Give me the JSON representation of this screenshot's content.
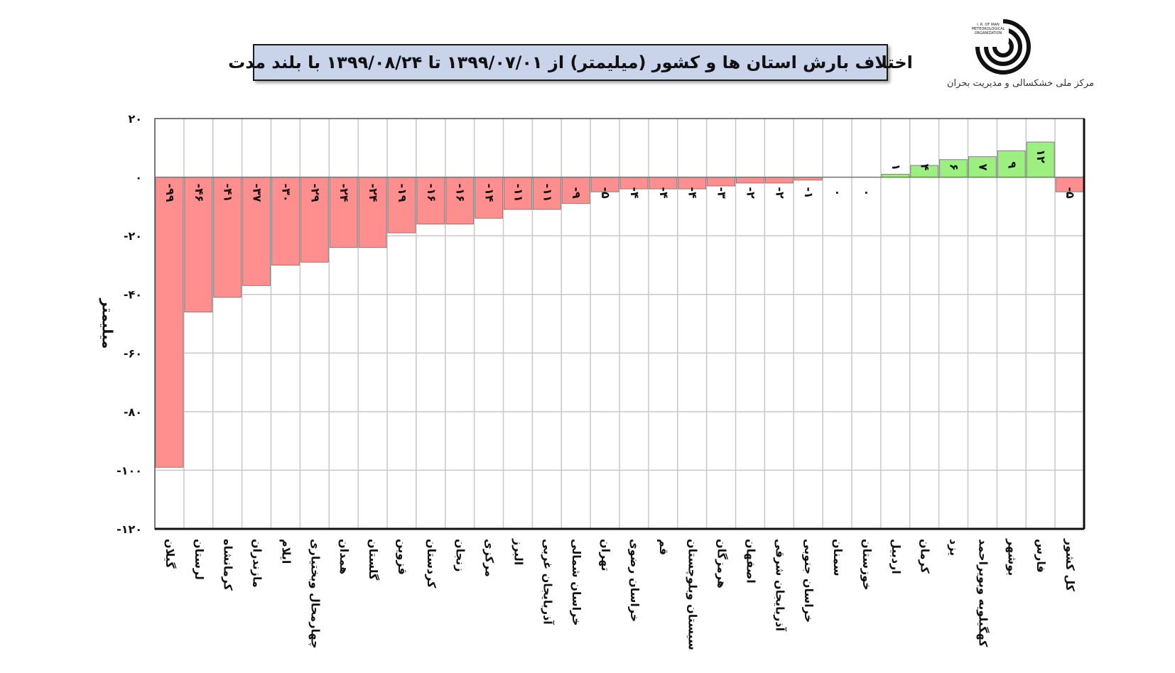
{
  "header": {
    "title": "اختلاف بارش استان ها و کشور (میلیمتر) از ۱۳۹۹/۰۷/۰۱ تا ۱۳۹۹/۰۸/۲۴ با بلند مدت",
    "org_caption": "مرکز ملی خشکسالی و مدیریت بحران",
    "logo_text": "I. R. OF IRAN METEOROLOGICAL ORGANIZATION"
  },
  "colors": {
    "negative": "#ff8f8f",
    "positive": "#9cf07f",
    "grid": "#c8c8c8",
    "title_bg": "#c9d3ea"
  },
  "chart_data": {
    "type": "bar",
    "title": "اختلاف بارش استان ها و کشور (میلیمتر) از ۱۳۹۹/۰۷/۰۱ تا ۱۳۹۹/۰۸/۲۴ با بلند مدت",
    "xlabel": "",
    "ylabel": "میلیمتر",
    "ylim": [
      -120,
      20
    ],
    "yticks": [
      20,
      0,
      -20,
      -40,
      -60,
      -80,
      -100,
      -120
    ],
    "ytick_labels": [
      "۲۰",
      "۰",
      "-۲۰",
      "-۴۰",
      "-۶۰",
      "-۸۰",
      "-۱۰۰",
      "-۱۲۰"
    ],
    "grid": true,
    "categories": [
      "گیلان",
      "لرستان",
      "کرمانشاه",
      "مازندران",
      "ایلام",
      "چهارمحال وبختیاری",
      "همدان",
      "گلستان",
      "قزوین",
      "کردستان",
      "زنجان",
      "مرکزی",
      "البرز",
      "آذربایجان غربی",
      "خراسان شمالی",
      "تهران",
      "خراسان رضوی",
      "قم",
      "سیستان وبلوچستان",
      "هرمزگان",
      "اصفهان",
      "آذربایجان شرقی",
      "خراسان جنوبی",
      "سمنان",
      "خوزستان",
      "اردبیل",
      "کرمان",
      "یزد",
      "کهگیلویه وبویراحمد",
      "بوشهر",
      "فارس",
      "کل کشور"
    ],
    "values": [
      -99,
      -46,
      -41,
      -37,
      -30,
      -29,
      -24,
      -24,
      -19,
      -16,
      -16,
      -14,
      -11,
      -11,
      -9,
      -5,
      -4,
      -4,
      -4,
      -3,
      -2,
      -2,
      -1,
      0,
      0,
      1,
      4,
      6,
      7,
      9,
      12,
      -5
    ],
    "value_labels": [
      "-۹۹",
      "-۴۶",
      "-۴۱",
      "-۳۷",
      "-۳۰",
      "-۲۹",
      "-۲۴",
      "-۲۴",
      "-۱۹",
      "-۱۶",
      "-۱۶",
      "-۱۴",
      "-۱۱",
      "-۱۱",
      "-۹",
      "-۵",
      "-۴",
      "-۴",
      "-۴",
      "-۳",
      "-۲",
      "-۲",
      "-۱",
      "۰",
      "۰",
      "۱",
      "۴",
      "۶",
      "۷",
      "۹",
      "۱۲",
      "-۵"
    ]
  }
}
